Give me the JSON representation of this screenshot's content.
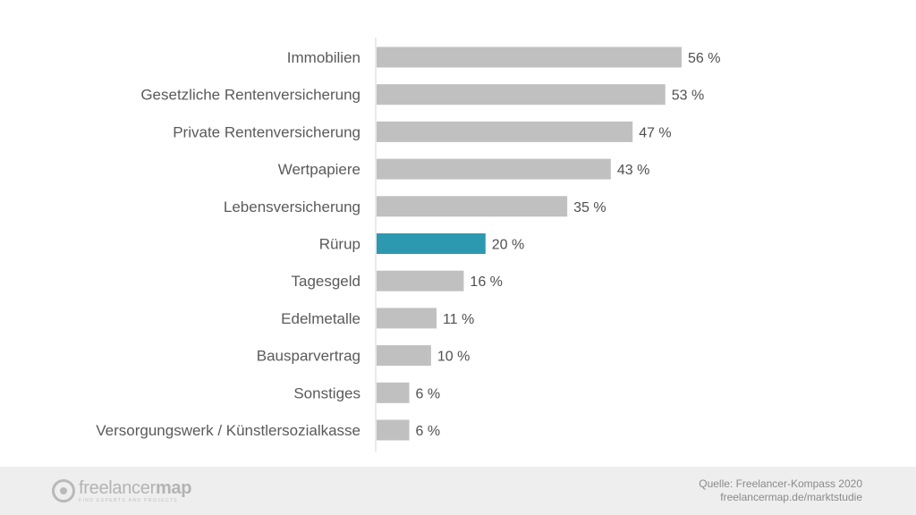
{
  "chart_data": {
    "type": "bar",
    "orientation": "horizontal",
    "categories": [
      "Immobilien",
      "Gesetzliche Rentenversicherung",
      "Private Rentenversicherung",
      "Wertpapiere",
      "Lebensversicherung",
      "Rürup",
      "Tagesgeld",
      "Edelmetalle",
      "Bausparvertrag",
      "Sonstiges",
      "Versorgungswerk / Künstlersozialkasse"
    ],
    "values": [
      56,
      53,
      47,
      43,
      35,
      20,
      16,
      11,
      10,
      6,
      6
    ],
    "value_labels": [
      "56 %",
      "53 %",
      "47 %",
      "43 %",
      "35 %",
      "20 %",
      "16 %",
      "11 %",
      "10 %",
      "6 %",
      "6 %"
    ],
    "highlight_category": "Rürup",
    "bar_color": "#c0c0c0",
    "highlight_color": "#2d99b0",
    "xlim": [
      0,
      100
    ],
    "grid": false
  },
  "footer": {
    "brand_part1": "freelancer",
    "brand_part2": "map",
    "tagline": "FIND EXPERTS AND PROJECTS",
    "source_line1": "Quelle: Freelancer-Kompass 2020",
    "source_line2": "freelancermap.de/marktstudie",
    "background": "#eeeeee"
  }
}
